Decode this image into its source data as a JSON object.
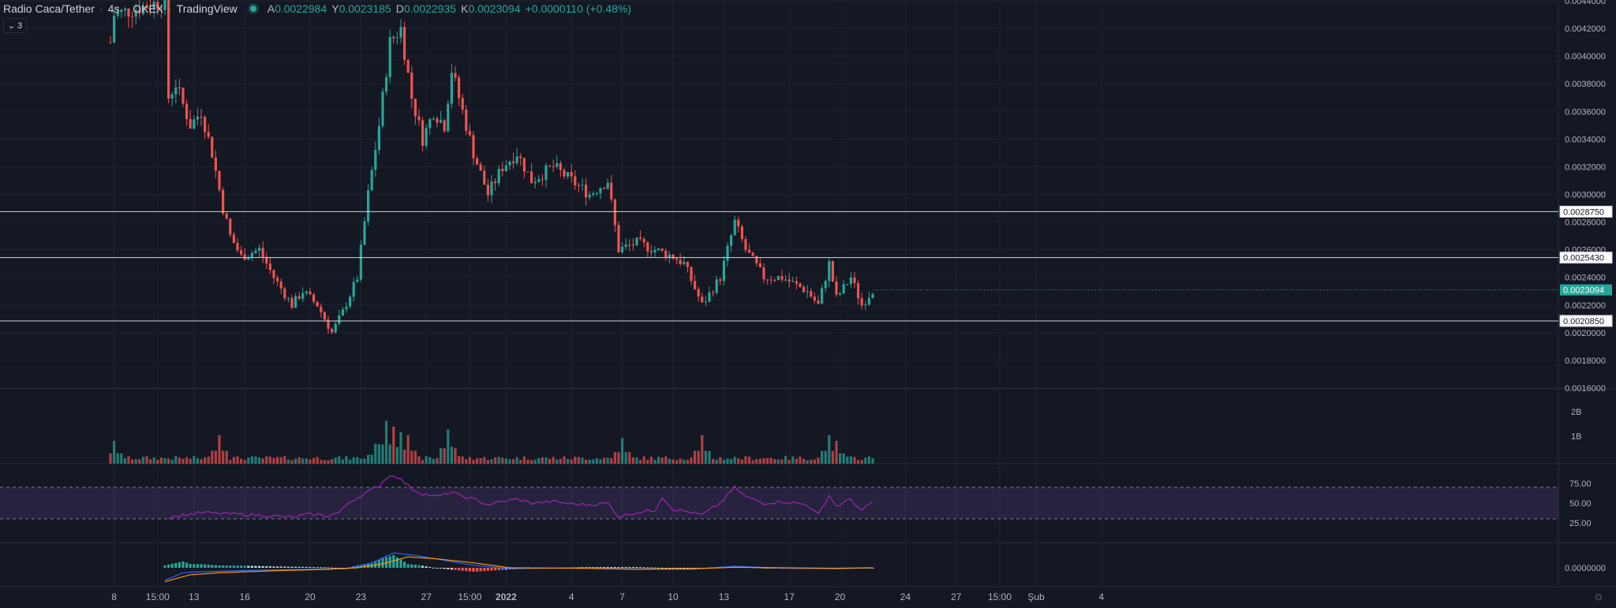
{
  "legend": {
    "symbol": "Radio Caca/Tether",
    "interval": "4s",
    "exchange": "OKEX",
    "source": "TradingView",
    "open_label": "A",
    "open": "0.0022984",
    "high_label": "Y",
    "high": "0.0023185",
    "low_label": "D",
    "low": "0.0022935",
    "close_label": "K",
    "close": "0.0023094",
    "change": "+0.0000110 (+0.48%)"
  },
  "collapse_button": {
    "label": "3"
  },
  "colors": {
    "up": "#26a69a",
    "down": "#ef5350",
    "rsi": "#9c27b0",
    "macd": "#2962ff",
    "signal": "#ff9800",
    "background": "#141823"
  },
  "chart_data": {
    "type": "candlestick",
    "price_axis": {
      "ticks": [
        "0.0044000",
        "0.0042000",
        "0.0040000",
        "0.0038000",
        "0.0036000",
        "0.0034000",
        "0.0032000",
        "0.0030000",
        "0.0028000",
        "0.0026000",
        "0.0024000",
        "0.0022000",
        "0.0020000",
        "0.0018000",
        "0.0016000"
      ],
      "range": [
        0.0016,
        0.0044
      ]
    },
    "horizontal_lines": [
      {
        "price": 0.002875,
        "label": "0.0028750"
      },
      {
        "price": 0.002543,
        "label": "0.0025430"
      },
      {
        "price": 0.002085,
        "label": "0.0020850"
      }
    ],
    "last_price": {
      "price": 0.0023094,
      "label": "0.0023094"
    },
    "time_axis": [
      {
        "label": "8",
        "i": 1
      },
      {
        "label": "15:00",
        "i": 13
      },
      {
        "label": "13",
        "i": 23
      },
      {
        "label": "16",
        "i": 37
      },
      {
        "label": "20",
        "i": 55
      },
      {
        "label": "23",
        "i": 69
      },
      {
        "label": "27",
        "i": 87
      },
      {
        "label": "15:00",
        "i": 99
      },
      {
        "label": "2022",
        "i": 109
      },
      {
        "label": "4",
        "i": 127
      },
      {
        "label": "7",
        "i": 141
      },
      {
        "label": "10",
        "i": 155
      },
      {
        "label": "13",
        "i": 169
      },
      {
        "label": "17",
        "i": 187
      },
      {
        "label": "20",
        "i": 201
      },
      {
        "label": "24",
        "i": 219
      },
      {
        "label": "27",
        "i": 233
      },
      {
        "label": "15:00",
        "i": 245
      },
      {
        "label": "Şub",
        "i": 255
      },
      {
        "label": "4",
        "i": 273
      }
    ],
    "bar_count": 230,
    "close_anchors": [
      [
        0,
        0.0041
      ],
      [
        1,
        0.0043
      ],
      [
        15,
        0.0044
      ],
      [
        16,
        0.0037
      ],
      [
        18,
        0.0038
      ],
      [
        22,
        0.0035
      ],
      [
        25,
        0.0036
      ],
      [
        28,
        0.0033
      ],
      [
        31,
        0.0029
      ],
      [
        33,
        0.0027
      ],
      [
        36,
        0.00255
      ],
      [
        41,
        0.0026
      ],
      [
        45,
        0.0024
      ],
      [
        50,
        0.0022
      ],
      [
        53,
        0.0023
      ],
      [
        57,
        0.0022
      ],
      [
        61,
        0.002
      ],
      [
        64,
        0.00215
      ],
      [
        68,
        0.0024
      ],
      [
        71,
        0.003
      ],
      [
        74,
        0.0035
      ],
      [
        77,
        0.0041
      ],
      [
        80,
        0.0042
      ],
      [
        83,
        0.0037
      ],
      [
        86,
        0.0034
      ],
      [
        89,
        0.0036
      ],
      [
        92,
        0.0035
      ],
      [
        94,
        0.0039
      ],
      [
        96,
        0.0037
      ],
      [
        100,
        0.0033
      ],
      [
        104,
        0.003
      ],
      [
        108,
        0.0032
      ],
      [
        112,
        0.0033
      ],
      [
        116,
        0.0031
      ],
      [
        122,
        0.0032
      ],
      [
        127,
        0.0031
      ],
      [
        132,
        0.003
      ],
      [
        137,
        0.0031
      ],
      [
        140,
        0.0026
      ],
      [
        145,
        0.00265
      ],
      [
        150,
        0.0026
      ],
      [
        155,
        0.00255
      ],
      [
        158,
        0.0025
      ],
      [
        163,
        0.0022
      ],
      [
        168,
        0.0024
      ],
      [
        172,
        0.0028
      ],
      [
        175,
        0.0026
      ],
      [
        180,
        0.0024
      ],
      [
        185,
        0.0024
      ],
      [
        192,
        0.0023
      ],
      [
        195,
        0.0022
      ],
      [
        198,
        0.0025
      ],
      [
        200,
        0.00225
      ],
      [
        204,
        0.0024
      ],
      [
        207,
        0.0022
      ],
      [
        210,
        0.0023094
      ]
    ],
    "volume_axis": {
      "ticks": [
        "2B",
        "1B"
      ]
    },
    "volume_spikes": [
      [
        1,
        0.8
      ],
      [
        30,
        1.0
      ],
      [
        73,
        0.7
      ],
      [
        76,
        1.5
      ],
      [
        78,
        1.3
      ],
      [
        80,
        1.1
      ],
      [
        82,
        1.0
      ],
      [
        93,
        1.2
      ],
      [
        94,
        0.6
      ],
      [
        141,
        0.9
      ],
      [
        163,
        1.0
      ],
      [
        198,
        1.0
      ],
      [
        200,
        0.8
      ]
    ],
    "rsi": {
      "ticks": [
        "75.00",
        "50.00",
        "25.00"
      ],
      "upper": 70,
      "lower": 30,
      "anchors": [
        [
          16,
          32
        ],
        [
          25,
          38
        ],
        [
          30,
          37
        ],
        [
          40,
          35
        ],
        [
          50,
          32
        ],
        [
          55,
          36
        ],
        [
          60,
          34
        ],
        [
          63,
          38
        ],
        [
          66,
          52
        ],
        [
          70,
          62
        ],
        [
          74,
          72
        ],
        [
          76,
          82
        ],
        [
          78,
          86
        ],
        [
          80,
          80
        ],
        [
          83,
          68
        ],
        [
          86,
          62
        ],
        [
          90,
          58
        ],
        [
          94,
          64
        ],
        [
          96,
          60
        ],
        [
          100,
          55
        ],
        [
          104,
          48
        ],
        [
          108,
          52
        ],
        [
          112,
          55
        ],
        [
          116,
          50
        ],
        [
          122,
          52
        ],
        [
          127,
          49
        ],
        [
          132,
          48
        ],
        [
          137,
          50
        ],
        [
          140,
          33
        ],
        [
          145,
          38
        ],
        [
          150,
          41
        ],
        [
          152,
          58
        ],
        [
          155,
          42
        ],
        [
          158,
          40
        ],
        [
          163,
          35
        ],
        [
          168,
          50
        ],
        [
          172,
          70
        ],
        [
          175,
          58
        ],
        [
          180,
          50
        ],
        [
          185,
          52
        ],
        [
          192,
          48
        ],
        [
          195,
          35
        ],
        [
          198,
          60
        ],
        [
          200,
          46
        ],
        [
          204,
          55
        ],
        [
          207,
          40
        ],
        [
          210,
          52
        ]
      ]
    },
    "macd": {
      "ticks": [
        "0.0000000"
      ],
      "macd_anchors": [
        [
          15,
          -0.00025
        ],
        [
          20,
          -0.0001
        ],
        [
          25,
          -8e-05
        ],
        [
          40,
          -5e-05
        ],
        [
          55,
          -3e-05
        ],
        [
          65,
          -2e-05
        ],
        [
          72,
          0.0001
        ],
        [
          78,
          0.0003
        ],
        [
          84,
          0.00025
        ],
        [
          92,
          0.00015
        ],
        [
          100,
          5e-05
        ],
        [
          110,
          -2e-05
        ],
        [
          130,
          0.0
        ],
        [
          145,
          -2e-05
        ],
        [
          160,
          -3e-05
        ],
        [
          172,
          3e-05
        ],
        [
          185,
          -1e-05
        ],
        [
          200,
          -2e-05
        ],
        [
          210,
          0.0
        ]
      ],
      "signal_anchors": [
        [
          15,
          -0.00028
        ],
        [
          22,
          -0.00014
        ],
        [
          30,
          -0.0001
        ],
        [
          45,
          -6e-05
        ],
        [
          60,
          -3e-05
        ],
        [
          68,
          0.0
        ],
        [
          75,
          8e-05
        ],
        [
          82,
          0.00022
        ],
        [
          90,
          0.00018
        ],
        [
          100,
          0.0001
        ],
        [
          110,
          0.0
        ],
        [
          130,
          -1e-05
        ],
        [
          145,
          -3e-05
        ],
        [
          160,
          -2e-05
        ],
        [
          172,
          1e-05
        ],
        [
          185,
          0.0
        ],
        [
          200,
          -1e-05
        ],
        [
          210,
          0.0
        ]
      ]
    }
  }
}
